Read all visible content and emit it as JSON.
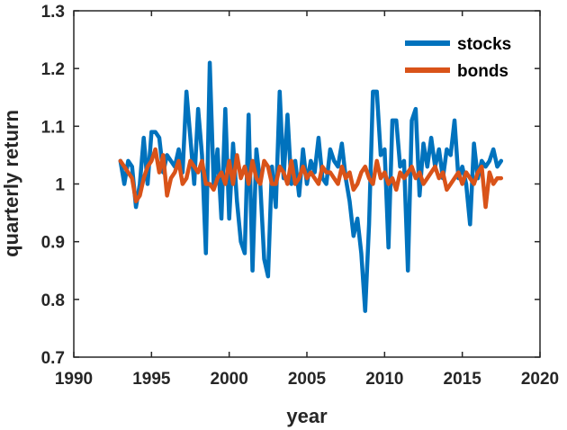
{
  "chart_data": {
    "type": "line",
    "title": "",
    "xlabel": "year",
    "ylabel": "quarterly return",
    "xlim": [
      1990,
      2020
    ],
    "ylim": [
      0.7,
      1.3
    ],
    "xticks": [
      1990,
      1995,
      2000,
      2005,
      2010,
      2015,
      2020
    ],
    "yticks": [
      0.7,
      0.8,
      0.9,
      1,
      1.1,
      1.2,
      1.3
    ],
    "xtick_labels": [
      "1990",
      "1995",
      "2000",
      "2005",
      "2010",
      "2015",
      "2020"
    ],
    "ytick_labels": [
      "0.7",
      "0.8",
      "0.9",
      "1",
      "1.1",
      "1.2",
      "1.3"
    ],
    "grid": false,
    "legend_position": "top-right",
    "series": [
      {
        "name": "stocks",
        "color": "#0072BD",
        "x": [
          1993.0,
          1993.25,
          1993.5,
          1993.75,
          1994.0,
          1994.25,
          1994.5,
          1994.75,
          1995.0,
          1995.25,
          1995.5,
          1995.75,
          1996.0,
          1996.25,
          1996.5,
          1996.75,
          1997.0,
          1997.25,
          1997.5,
          1997.75,
          1998.0,
          1998.25,
          1998.5,
          1998.75,
          1999.0,
          1999.25,
          1999.5,
          1999.75,
          2000.0,
          2000.25,
          2000.5,
          2000.75,
          2001.0,
          2001.25,
          2001.5,
          2001.75,
          2002.0,
          2002.25,
          2002.5,
          2002.75,
          2003.0,
          2003.25,
          2003.5,
          2003.75,
          2004.0,
          2004.25,
          2004.5,
          2004.75,
          2005.0,
          2005.25,
          2005.5,
          2005.75,
          2006.0,
          2006.25,
          2006.5,
          2006.75,
          2007.0,
          2007.25,
          2007.5,
          2007.75,
          2008.0,
          2008.25,
          2008.5,
          2008.75,
          2009.0,
          2009.25,
          2009.5,
          2009.75,
          2010.0,
          2010.25,
          2010.5,
          2010.75,
          2011.0,
          2011.25,
          2011.5,
          2011.75,
          2012.0,
          2012.25,
          2012.5,
          2012.75,
          2013.0,
          2013.25,
          2013.5,
          2013.75,
          2014.0,
          2014.25,
          2014.5,
          2014.75,
          2015.0,
          2015.25,
          2015.5,
          2015.75,
          2016.0,
          2016.25,
          2016.5,
          2016.75,
          2017.0,
          2017.25,
          2017.5
        ],
        "values": [
          1.04,
          1.0,
          1.04,
          1.03,
          0.96,
          1.0,
          1.08,
          1.0,
          1.09,
          1.09,
          1.08,
          1.02,
          1.05,
          1.04,
          1.03,
          1.06,
          1.02,
          1.16,
          1.08,
          1.0,
          1.13,
          1.05,
          0.88,
          1.21,
          1.0,
          1.06,
          0.94,
          1.13,
          0.94,
          1.07,
          0.97,
          0.9,
          0.88,
          1.12,
          0.85,
          1.06,
          1.0,
          0.87,
          0.84,
          1.03,
          0.96,
          1.16,
          1.01,
          1.12,
          1.0,
          1.04,
          0.98,
          1.06,
          1.0,
          1.04,
          1.02,
          1.08,
          1.01,
          1.0,
          1.06,
          1.04,
          1.03,
          1.07,
          1.01,
          0.97,
          0.91,
          0.94,
          0.88,
          0.78,
          0.93,
          1.16,
          1.16,
          1.05,
          1.06,
          0.89,
          1.11,
          1.11,
          1.03,
          1.04,
          0.85,
          1.11,
          1.13,
          0.98,
          1.07,
          1.03,
          1.08,
          1.03,
          1.06,
          1.01,
          1.06,
          1.05,
          1.11,
          1.01,
          1.03,
          1.0,
          0.93,
          1.07,
          1.01,
          1.04,
          1.03,
          1.04,
          1.06,
          1.03,
          1.04
        ]
      },
      {
        "name": "bonds",
        "color": "#D95319",
        "x": [
          1993.0,
          1993.25,
          1993.5,
          1993.75,
          1994.0,
          1994.25,
          1994.5,
          1994.75,
          1995.0,
          1995.25,
          1995.5,
          1995.75,
          1996.0,
          1996.25,
          1996.5,
          1996.75,
          1997.0,
          1997.25,
          1997.5,
          1997.75,
          1998.0,
          1998.25,
          1998.5,
          1998.75,
          1999.0,
          1999.25,
          1999.5,
          1999.75,
          2000.0,
          2000.25,
          2000.5,
          2000.75,
          2001.0,
          2001.25,
          2001.5,
          2001.75,
          2002.0,
          2002.25,
          2002.5,
          2002.75,
          2003.0,
          2003.25,
          2003.5,
          2003.75,
          2004.0,
          2004.25,
          2004.5,
          2004.75,
          2005.0,
          2005.25,
          2005.5,
          2005.75,
          2006.0,
          2006.25,
          2006.5,
          2006.75,
          2007.0,
          2007.25,
          2007.5,
          2007.75,
          2008.0,
          2008.25,
          2008.5,
          2008.75,
          2009.0,
          2009.25,
          2009.5,
          2009.75,
          2010.0,
          2010.25,
          2010.5,
          2010.75,
          2011.0,
          2011.25,
          2011.5,
          2011.75,
          2012.0,
          2012.25,
          2012.5,
          2012.75,
          2013.0,
          2013.25,
          2013.5,
          2013.75,
          2014.0,
          2014.25,
          2014.5,
          2014.75,
          2015.0,
          2015.25,
          2015.5,
          2015.75,
          2016.0,
          2016.25,
          2016.5,
          2016.75,
          2017.0,
          2017.25,
          2017.5
        ],
        "values": [
          1.04,
          1.03,
          1.02,
          1.01,
          0.97,
          0.98,
          1.01,
          1.03,
          1.04,
          1.06,
          1.02,
          1.05,
          0.98,
          1.01,
          1.02,
          1.04,
          1.0,
          1.01,
          1.04,
          1.03,
          1.02,
          1.04,
          1.0,
          1.0,
          0.99,
          1.01,
          1.02,
          1.0,
          1.04,
          1.0,
          1.05,
          1.01,
          1.03,
          1.0,
          1.04,
          1.01,
          1.0,
          1.04,
          1.03,
          1.0,
          1.0,
          1.03,
          1.02,
          1.0,
          1.04,
          1.0,
          1.01,
          1.03,
          1.01,
          1.02,
          1.01,
          1.0,
          1.03,
          1.02,
          1.02,
          1.01,
          1.0,
          1.03,
          1.01,
          1.02,
          0.99,
          1.0,
          1.02,
          1.03,
          1.01,
          1.0,
          1.04,
          1.01,
          1.02,
          1.0,
          1.01,
          0.99,
          1.02,
          1.01,
          1.02,
          1.03,
          1.01,
          1.02,
          1.0,
          1.01,
          1.02,
          1.03,
          1.01,
          1.02,
          0.99,
          1.0,
          1.01,
          1.02,
          1.0,
          1.02,
          1.01,
          1.0,
          1.02,
          1.03,
          0.96,
          1.02,
          1.0,
          1.01,
          1.01
        ]
      }
    ]
  }
}
